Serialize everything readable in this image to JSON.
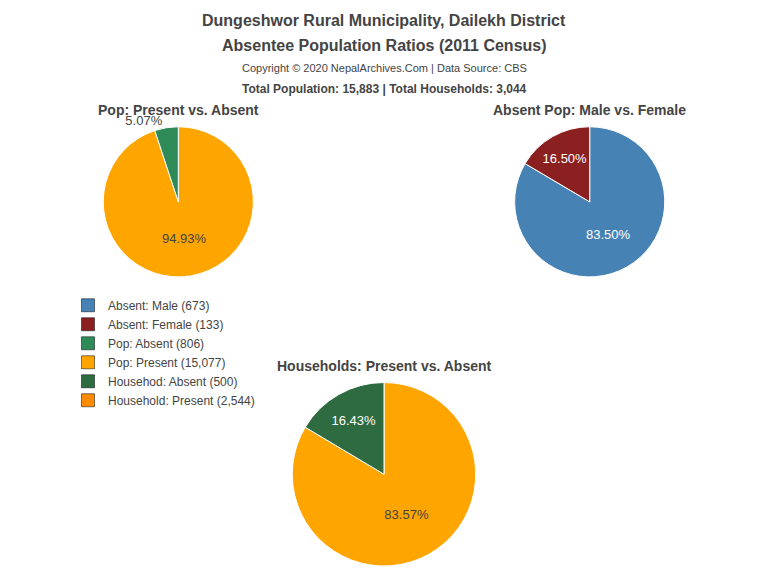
{
  "title": "Dungeshwor Rural Municipality, Dailekh District",
  "subtitle": "Absentee Population Ratios (2011 Census)",
  "annotations": [
    "Copyright © 2020 NepalArchives.Com | Data Source: CBS",
    "Total Population: 15,883 | Total Households: 3,044"
  ],
  "chart_data": [
    {
      "type": "pie",
      "title": "Pop: Present vs. Absent",
      "values": [
        94.93,
        5.07
      ],
      "value_labels": [
        "94.93%",
        "5.07%"
      ],
      "colors": [
        "#FFA500",
        "#2E8B57"
      ],
      "data_labels": true
    },
    {
      "type": "pie",
      "title": "Absent Pop: Male vs. Female",
      "values": [
        83.5,
        16.5
      ],
      "value_labels": [
        "83.50%",
        "16.50%"
      ],
      "colors": [
        "#4682B4",
        "#8B2020"
      ],
      "data_labels": true
    },
    {
      "type": "pie",
      "title": "Households: Present vs. Absent",
      "values": [
        83.57,
        16.43
      ],
      "value_labels": [
        "83.57%",
        "16.43%"
      ],
      "colors": [
        "#FFA500",
        "#2E6B40"
      ],
      "data_labels": true
    }
  ],
  "legend_entries": [
    {
      "name": "Absent: Male (673)",
      "color": "#4682B4"
    },
    {
      "name": "Absent: Female (133)",
      "color": "#8B2020"
    },
    {
      "name": "Pop: Absent (806)",
      "color": "#2E8B57"
    },
    {
      "name": "Pop: Present (15,077)",
      "color": "#FFA500"
    },
    {
      "name": "Househod: Absent (500)",
      "color": "#2E6B40"
    },
    {
      "name": "Household: Present (2,544)",
      "color": "#FF8C00"
    }
  ]
}
